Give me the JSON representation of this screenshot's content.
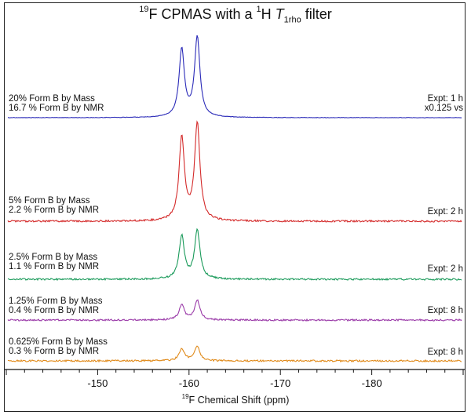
{
  "title": {
    "iso_sup": "19",
    "pre": "F CPMAS with a ",
    "h_sup": "1",
    "h_text": "H ",
    "t_italic": "T",
    "t_sub": "1rho",
    "post": " filter"
  },
  "chart_data": {
    "type": "line",
    "title": "19F CPMAS with a 1H T1rho filter",
    "xlabel": "19F Chemical Shift (ppm)",
    "x_axis": {
      "range": [
        -140,
        -190
      ],
      "reversed": true,
      "ticks": [
        -150,
        -160,
        -170,
        -180
      ],
      "tick_labels": [
        "-150",
        "-160",
        "-170",
        "-180"
      ]
    },
    "peaks_ppm": [
      -159.2,
      -160.9
    ],
    "series": [
      {
        "left_label_1": "20% Form B by Mass",
        "left_label_2": "16.7 % Form B by NMR",
        "right_label_1": "Expt: 1 h",
        "right_label_2": "x0.125 vs",
        "color": "#2a2ab8",
        "peak_heights": [
          0.72,
          0.85
        ]
      },
      {
        "left_label_1": "5% Form B by Mass",
        "left_label_2": "2.2 % Form B by NMR",
        "right_label_1": "Expt: 2 h",
        "right_label_2": "",
        "color": "#d42a2a",
        "peak_heights": [
          0.82,
          0.95
        ]
      },
      {
        "left_label_1": "2.5% Form B by Mass",
        "left_label_2": "1.1 % Form B by NMR",
        "right_label_1": "Expt: 2 h",
        "right_label_2": "",
        "color": "#1a9a5a",
        "peak_heights": [
          0.42,
          0.48
        ]
      },
      {
        "left_label_1": "1.25% Form B by Mass",
        "left_label_2": "0.4 % Form B by NMR",
        "right_label_1": "Expt: 8 h",
        "right_label_2": "",
        "color": "#9a3aa8",
        "peak_heights": [
          0.15,
          0.19
        ]
      },
      {
        "left_label_1": "0.625% Form B by Mass",
        "left_label_2": "0.3 % Form B by NMR",
        "right_label_1": "Expt: 8 h",
        "right_label_2": "",
        "color": "#e08a1a",
        "peak_heights": [
          0.12,
          0.14
        ]
      }
    ]
  }
}
